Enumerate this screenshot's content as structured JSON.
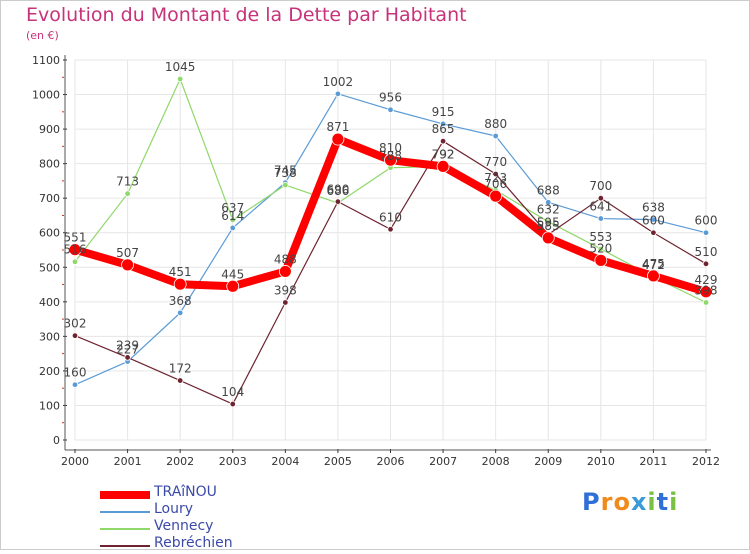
{
  "chart_data": {
    "type": "line",
    "title": "Evolution du Montant de la Dette par Habitant",
    "subtitle": "(en €)",
    "categories": [
      "2000",
      "2001",
      "2002",
      "2003",
      "2004",
      "2005",
      "2006",
      "2007",
      "2008",
      "2009",
      "2010",
      "2011",
      "2012"
    ],
    "yticks": [
      "0",
      "100",
      "200",
      "300",
      "400",
      "500",
      "600",
      "700",
      "800",
      "900",
      "1000",
      "1100"
    ],
    "ylim": [
      0,
      1100
    ],
    "grid": true,
    "legend_position": "bottom-left",
    "series": [
      {
        "name": "Loury",
        "color": "#5b9bd5",
        "width": 1.2,
        "dot": 2.8,
        "values": [
          160,
          227,
          368,
          614,
          745,
          1002,
          956,
          915,
          880,
          688,
          641,
          638,
          600
        ]
      },
      {
        "name": "Vennecy",
        "color": "#8fd86a",
        "width": 1.2,
        "dot": 2.8,
        "values": [
          516,
          713,
          1045,
          637,
          738,
          686,
          788,
          792,
          723,
          632,
          553,
          472,
          398
        ]
      },
      {
        "name": "Rebréchien",
        "color": "#6e2430",
        "width": 1.2,
        "dot": 2.8,
        "values": [
          302,
          239,
          172,
          104,
          398,
          690,
          610,
          865,
          770,
          595,
          700,
          600,
          510
        ]
      },
      {
        "name": "TRAîNOU",
        "color": "#ff0000",
        "width": 8,
        "dot": 6,
        "values": [
          551,
          507,
          451,
          445,
          488,
          871,
          810,
          792,
          706,
          585,
          520,
          475,
          429
        ]
      }
    ],
    "labels": [
      {
        "v": "160",
        "x": 0,
        "y": 160
      },
      {
        "v": "227",
        "x": 1,
        "y": 227
      },
      {
        "v": "368",
        "x": 2,
        "y": 368
      },
      {
        "v": "614",
        "x": 3,
        "y": 614
      },
      {
        "v": "745",
        "x": 4,
        "y": 745
      },
      {
        "v": "1002",
        "x": 5,
        "y": 1002
      },
      {
        "v": "956",
        "x": 6,
        "y": 956
      },
      {
        "v": "915",
        "x": 7,
        "y": 915
      },
      {
        "v": "880",
        "x": 8,
        "y": 880
      },
      {
        "v": "688",
        "x": 9,
        "y": 688
      },
      {
        "v": "641",
        "x": 10,
        "y": 641
      },
      {
        "v": "638",
        "x": 11,
        "y": 638
      },
      {
        "v": "600",
        "x": 12,
        "y": 600
      },
      {
        "v": "516",
        "x": 0,
        "y": 516
      },
      {
        "v": "713",
        "x": 1,
        "y": 713
      },
      {
        "v": "1045",
        "x": 2,
        "y": 1045
      },
      {
        "v": "637",
        "x": 3,
        "y": 637
      },
      {
        "v": "738",
        "x": 4,
        "y": 738
      },
      {
        "v": "686",
        "x": 5,
        "y": 686
      },
      {
        "v": "788",
        "x": 6,
        "y": 788
      },
      {
        "v": "792",
        "x": 7,
        "y": 792
      },
      {
        "v": "723",
        "x": 8,
        "y": 723
      },
      {
        "v": "632",
        "x": 9,
        "y": 632
      },
      {
        "v": "553",
        "x": 10,
        "y": 553
      },
      {
        "v": "472",
        "x": 11,
        "y": 472
      },
      {
        "v": "398",
        "x": 12,
        "y": 398
      },
      {
        "v": "302",
        "x": 0,
        "y": 302
      },
      {
        "v": "239",
        "x": 1,
        "y": 239
      },
      {
        "v": "172",
        "x": 2,
        "y": 172
      },
      {
        "v": "104",
        "x": 3,
        "y": 104
      },
      {
        "v": "398",
        "x": 4,
        "y": 398
      },
      {
        "v": "690",
        "x": 5,
        "y": 690
      },
      {
        "v": "610",
        "x": 6,
        "y": 610
      },
      {
        "v": "865",
        "x": 7,
        "y": 865
      },
      {
        "v": "770",
        "x": 8,
        "y": 770
      },
      {
        "v": "595",
        "x": 9,
        "y": 595
      },
      {
        "v": "700",
        "x": 10,
        "y": 700
      },
      {
        "v": "600",
        "x": 11,
        "y": 600
      },
      {
        "v": "510",
        "x": 12,
        "y": 510
      },
      {
        "v": "551",
        "x": 0,
        "y": 551
      },
      {
        "v": "507",
        "x": 1,
        "y": 507
      },
      {
        "v": "451",
        "x": 2,
        "y": 451
      },
      {
        "v": "445",
        "x": 3,
        "y": 445
      },
      {
        "v": "488",
        "x": 4,
        "y": 488
      },
      {
        "v": "871",
        "x": 5,
        "y": 871
      },
      {
        "v": "810",
        "x": 6,
        "y": 810
      },
      {
        "v": "792",
        "x": 7,
        "y": 792
      },
      {
        "v": "706",
        "x": 8,
        "y": 706
      },
      {
        "v": "585",
        "x": 9,
        "y": 585
      },
      {
        "v": "520",
        "x": 10,
        "y": 520
      },
      {
        "v": "475",
        "x": 11,
        "y": 475
      },
      {
        "v": "429",
        "x": 12,
        "y": 429
      }
    ]
  },
  "legend": {
    "items": [
      {
        "label": "TRAîNOU",
        "color": "#ff0000"
      },
      {
        "label": "Loury",
        "color": "#5b9bd5"
      },
      {
        "label": "Vennecy",
        "color": "#8fd86a"
      },
      {
        "label": "Rebréchien",
        "color": "#6e2430"
      }
    ]
  },
  "logo": {
    "letters": [
      "P",
      "r",
      "o",
      "x",
      "i",
      "t",
      "i"
    ],
    "colors": [
      "#2f6fd6",
      "#f08a1c",
      "#f08a1c",
      "#3a9bd8",
      "#7ac143",
      "#2f6fd6",
      "#7ac143"
    ]
  }
}
